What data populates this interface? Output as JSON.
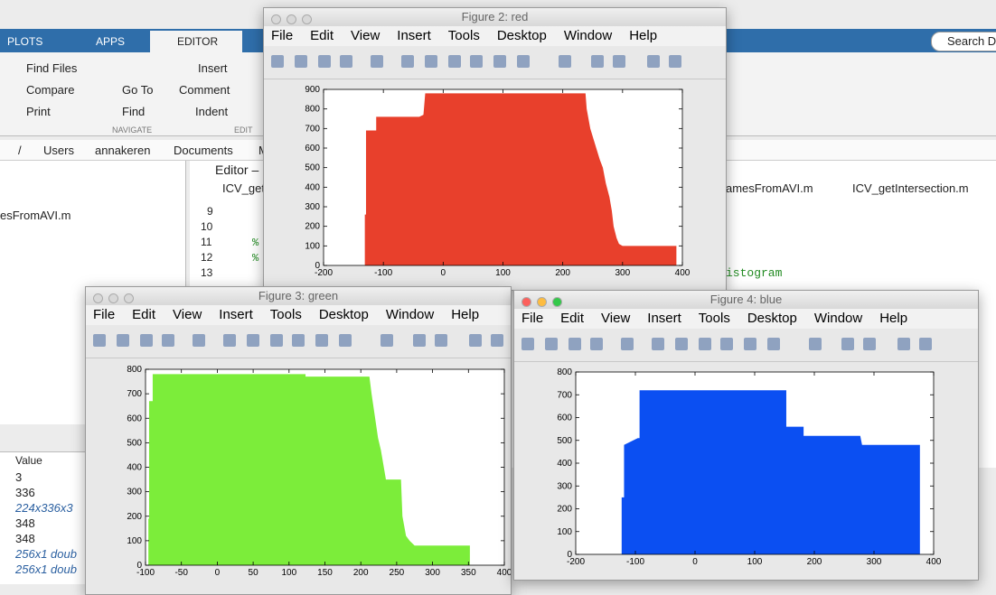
{
  "desktop": {
    "tabs": [
      "PLOTS",
      "APPS",
      "EDITOR"
    ],
    "file_buttons": [
      "Find Files",
      "Compare",
      "Print"
    ],
    "navigate_buttons": [
      "Go To",
      "Find"
    ],
    "edit_buttons": [
      "Insert",
      "Comment",
      "Indent"
    ],
    "sections": [
      "NAVIGATE",
      "EDIT"
    ],
    "search": "Search D",
    "path": [
      "/",
      "Users",
      "annakeren",
      "Documents",
      "M"
    ],
    "folder_files": [
      "esFromAVI.m"
    ],
    "editor_title": "Editor –",
    "editor_tabs": [
      "ICV_get",
      "amesFromAVI.m",
      "ICV_getIntersection.m"
    ],
    "line_numbers": [
      "9",
      "10",
      "11",
      "12",
      "13"
    ],
    "code": [
      "%",
      "%",
      "istogram"
    ],
    "workspace_header": "Value",
    "workspace_values": [
      "3",
      "336",
      "224x336x3",
      "348",
      "348",
      "256x1 doub",
      "256x1 doub"
    ]
  },
  "figure_menu": [
    "File",
    "Edit",
    "View",
    "Insert",
    "Tools",
    "Desktop",
    "Window",
    "Help"
  ],
  "figures": [
    {
      "title": "Figure 2: red"
    },
    {
      "title": "Figure 3: green"
    },
    {
      "title": "Figure 4: blue"
    }
  ],
  "chart_data": [
    {
      "type": "area",
      "color": "#e8402c",
      "x": [
        -131,
        -129,
        -129,
        -112,
        -112,
        -40,
        -33,
        -30,
        238,
        240,
        246,
        252,
        258,
        262,
        267,
        272,
        278,
        282,
        285,
        290,
        294,
        300,
        390
      ],
      "values": [
        260,
        260,
        690,
        690,
        760,
        760,
        770,
        880,
        880,
        800,
        700,
        640,
        580,
        540,
        500,
        420,
        350,
        280,
        200,
        140,
        110,
        100,
        100
      ],
      "xlim": [
        -200,
        400
      ],
      "ylim": [
        0,
        900
      ],
      "xticks": [
        -200,
        -100,
        0,
        100,
        200,
        300,
        400
      ],
      "yticks": [
        0,
        100,
        200,
        300,
        400,
        500,
        600,
        700,
        800,
        900
      ]
    },
    {
      "type": "area",
      "color": "#7ced3a",
      "x": [
        -96,
        -95,
        -95,
        -90,
        -90,
        -71,
        123,
        123,
        212,
        215,
        220,
        224,
        228,
        235,
        256,
        258,
        263,
        268,
        275,
        352
      ],
      "values": [
        190,
        190,
        670,
        670,
        780,
        780,
        780,
        770,
        770,
        700,
        600,
        520,
        470,
        350,
        350,
        200,
        120,
        100,
        80,
        80
      ],
      "xlim": [
        -100,
        400
      ],
      "ylim": [
        0,
        800
      ],
      "xticks": [
        -100,
        -50,
        0,
        50,
        100,
        150,
        200,
        250,
        300,
        350,
        400
      ],
      "yticks": [
        0,
        100,
        200,
        300,
        400,
        500,
        600,
        700,
        800
      ]
    },
    {
      "type": "area",
      "color": "#0b4ff2",
      "x": [
        -123,
        -119,
        -119,
        -96,
        -93,
        -93,
        153,
        153,
        182,
        182,
        277,
        280,
        377
      ],
      "values": [
        250,
        250,
        480,
        510,
        510,
        720,
        720,
        560,
        560,
        520,
        520,
        480,
        480
      ],
      "xlim": [
        -200,
        400
      ],
      "ylim": [
        0,
        800
      ],
      "xticks": [
        -200,
        -100,
        0,
        100,
        200,
        300,
        400
      ],
      "yticks": [
        0,
        100,
        200,
        300,
        400,
        500,
        600,
        700,
        800
      ]
    }
  ]
}
